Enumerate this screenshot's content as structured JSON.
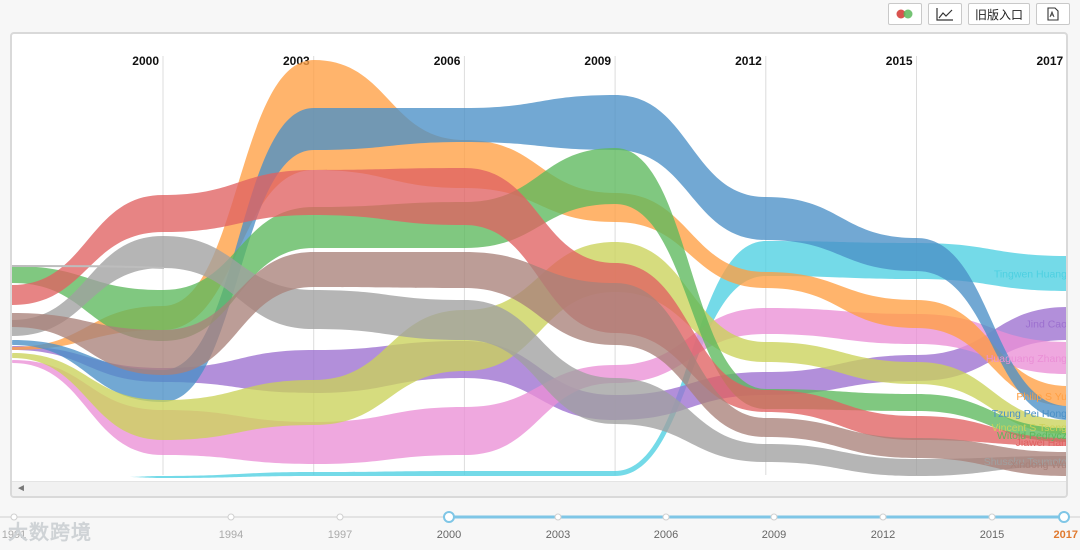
{
  "toolbar": {
    "heat_icon": "bubble-map-icon",
    "trend_icon": "line-chart-icon",
    "old_version_label": "旧版入口",
    "pdf_icon": "pdf-export-icon"
  },
  "watermark": "大数跨境",
  "chart_data": {
    "type": "streamgraph",
    "title": "",
    "top_axis_years": [
      "2000",
      "2003",
      "2006",
      "2009",
      "2012",
      "2015",
      "2017"
    ],
    "x_sample_years": [
      1991,
      1994,
      1997,
      2000,
      2003,
      2006,
      2009,
      2012,
      2015,
      2017
    ],
    "series": [
      {
        "name": "Tingwen Huang",
        "color": "#4dd0e1",
        "top": [
          null,
          null,
          null,
          476,
          472,
          471,
          471,
          241,
          243,
          256
        ],
        "bottom": [
          null,
          null,
          null,
          478,
          476,
          476,
          476,
          276,
          279,
          291
        ]
      },
      {
        "name": "Jind Cao",
        "color": "#9c6fcf",
        "top": [
          null,
          null,
          346,
          368,
          350,
          341,
          395,
          372,
          355,
          307
        ],
        "bottom": [
          null,
          null,
          350,
          382,
          393,
          378,
          420,
          395,
          381,
          340
        ]
      },
      {
        "name": "Huaguang Zhang",
        "color": "#ea8fd6",
        "top": [
          null,
          null,
          360,
          410,
          422,
          407,
          365,
          308,
          314,
          342
        ],
        "bottom": [
          null,
          null,
          363,
          455,
          464,
          455,
          383,
          334,
          344,
          374
        ]
      },
      {
        "name": "Philip S Yu",
        "color": "#ff9f43",
        "top": [
          null,
          null,
          347,
          306,
          60,
          140,
          193,
          272,
          300,
          386
        ],
        "bottom": [
          null,
          null,
          350,
          330,
          170,
          188,
          222,
          288,
          328,
          406
        ]
      },
      {
        "name": "Tzung Pei Hong",
        "color": "#4a90c7",
        "top": [
          null,
          null,
          340,
          370,
          108,
          108,
          95,
          197,
          238,
          406
        ],
        "bottom": [
          null,
          null,
          345,
          402,
          150,
          142,
          150,
          240,
          271,
          420
        ]
      },
      {
        "name": "Vincent S Tseng",
        "color": "#cbd25a",
        "top": [
          null,
          null,
          353,
          400,
          380,
          310,
          242,
          342,
          362,
          420
        ],
        "bottom": [
          null,
          null,
          358,
          440,
          425,
          371,
          292,
          362,
          384,
          434
        ]
      },
      {
        "name": "Witold Pedrycz",
        "color": "#5cb85c",
        "top": [
          null,
          268,
          266,
          290,
          207,
          202,
          148,
          389,
          394,
          428
        ],
        "bottom": [
          null,
          283,
          283,
          341,
          248,
          248,
          204,
          409,
          411,
          442
        ]
      },
      {
        "name": "Jiawei Han",
        "color": "#e06262",
        "top": [
          null,
          288,
          285,
          195,
          170,
          168,
          263,
          390,
          416,
          438
        ],
        "bottom": [
          null,
          294,
          305,
          232,
          215,
          225,
          333,
          412,
          440,
          446
        ]
      },
      {
        "name": "Shusaku Tsumoto",
        "color": "#a0a0a0",
        "top": [
          null,
          267,
          320,
          236,
          290,
          300,
          378,
          444,
          459,
          456
        ],
        "bottom": [
          null,
          276,
          336,
          268,
          329,
          340,
          424,
          462,
          476,
          466
        ]
      },
      {
        "name": "Xindong Wu",
        "color": "#a9827a",
        "top": [
          null,
          295,
          313,
          330,
          252,
          252,
          283,
          418,
          438,
          452
        ],
        "bottom": [
          null,
          300,
          327,
          375,
          287,
          288,
          345,
          437,
          458,
          476
        ]
      }
    ]
  },
  "timeline": {
    "years": [
      "1991",
      "1994",
      "1997",
      "2000",
      "2003",
      "2006",
      "2009",
      "2012",
      "2015",
      "2017"
    ],
    "range_start": "2000",
    "range_end": "2017"
  }
}
